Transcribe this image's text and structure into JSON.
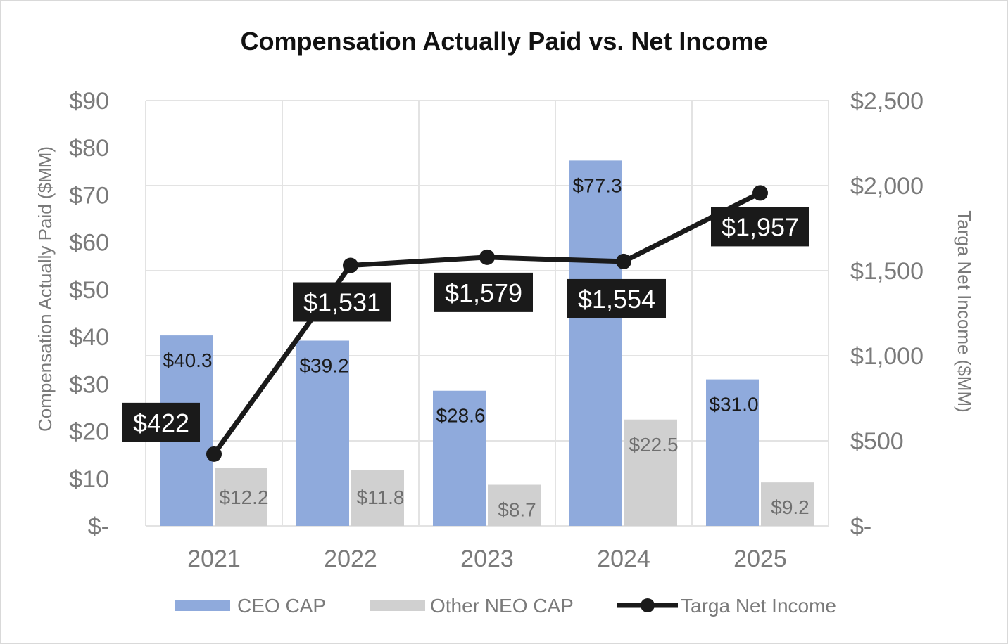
{
  "chart_data": {
    "type": "bar",
    "title": "Compensation Actually Paid vs. Net Income",
    "categories": [
      "2021",
      "2022",
      "2023",
      "2024",
      "2025"
    ],
    "series": [
      {
        "name": "CEO CAP",
        "type": "bar",
        "axis": "left",
        "color": "#8faadc",
        "values": [
          40.3,
          39.2,
          28.6,
          77.3,
          31.0
        ],
        "labels": [
          "$40.3",
          "$39.2",
          "$28.6",
          "$77.3",
          "$31.0"
        ]
      },
      {
        "name": "Other NEO CAP",
        "type": "bar",
        "axis": "left",
        "color": "#d0d0d0",
        "values": [
          12.2,
          11.8,
          8.7,
          22.5,
          9.2
        ],
        "labels": [
          "$12.2",
          "$11.8",
          "$8.7",
          "$22.5",
          "$9.2"
        ]
      },
      {
        "name": "Targa Net Income",
        "type": "line",
        "axis": "right",
        "color": "#1a1a1a",
        "values": [
          422,
          1531,
          1579,
          1554,
          1957
        ],
        "labels": [
          "$422",
          "$1,531",
          "$1,579",
          "$1,554",
          "$1,957"
        ]
      }
    ],
    "y_left": {
      "label": "Compensation Actually Paid ($MM)",
      "min": 0,
      "max": 90,
      "ticks": [
        0,
        10,
        20,
        30,
        40,
        50,
        60,
        70,
        80,
        90
      ],
      "tick_labels": [
        "$-",
        "$10",
        "$20",
        "$30",
        "$40",
        "$50",
        "$60",
        "$70",
        "$80",
        "$90"
      ]
    },
    "y_right": {
      "label": "Targa Net Income ($MM)",
      "min": 0,
      "max": 2500,
      "ticks": [
        0,
        500,
        1000,
        1500,
        2000,
        2500
      ],
      "tick_labels": [
        "$-",
        "$500",
        "$1,000",
        "$1,500",
        "$2,000",
        "$2,500"
      ]
    },
    "grid": true,
    "legend": "bottom"
  }
}
